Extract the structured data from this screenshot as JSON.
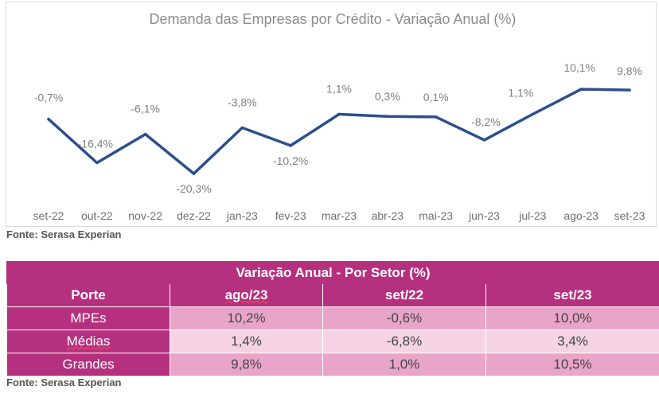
{
  "chart_data": {
    "type": "line",
    "title": "Demanda das Empresas por Crédito - Variação Anual (%)",
    "categories": [
      "set-22",
      "out-22",
      "nov-22",
      "dez-22",
      "jan-23",
      "fev-23",
      "mar-23",
      "abr-23",
      "mai-23",
      "jun-23",
      "jul-23",
      "ago-23",
      "set-23"
    ],
    "values": [
      -0.7,
      -16.4,
      -6.1,
      -20.3,
      -3.8,
      -10.2,
      1.1,
      0.3,
      0.1,
      -8.2,
      1.1,
      10.1,
      9.8
    ],
    "labels": [
      "-0,7%",
      "-16,4%",
      "-6,1%",
      "-20,3%",
      "-3,8%",
      "-10,2%",
      "1,1%",
      "0,3%",
      "0,1%",
      "-8,2%",
      "1,1%",
      "10,1%",
      "9,8%"
    ],
    "xlabel": "",
    "ylabel": "",
    "ylim": [
      -24,
      17
    ],
    "grid": false,
    "line_color": "#2c4f8c",
    "label_color": "#7f7f7f"
  },
  "source_top": "Fonte: Serasa Experian",
  "table": {
    "title": "Variação Anual - Por Setor (%)",
    "headers": [
      "Porte",
      "ago/23",
      "set/22",
      "set/23"
    ],
    "rows": [
      {
        "label": "MPEs",
        "values": [
          "10,2%",
          "-0,6%",
          "10,0%"
        ]
      },
      {
        "label": "Médias",
        "values": [
          "1,4%",
          "-6,8%",
          "3,4%"
        ]
      },
      {
        "label": "Grandes",
        "values": [
          "9,8%",
          "1,0%",
          "10,5%"
        ]
      }
    ],
    "header_color": "#b5307e"
  },
  "source_bottom": "Fonte: Serasa Experian"
}
